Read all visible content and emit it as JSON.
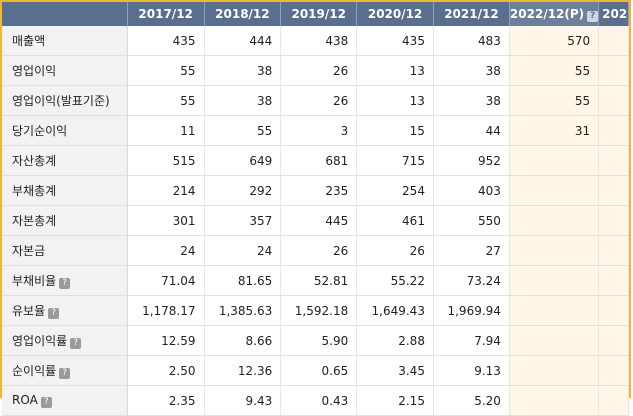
{
  "header": {
    "columns": [
      "2017/12",
      "2018/12",
      "2019/12",
      "2020/12",
      "2021/12",
      "2022/12(P)",
      "202"
    ],
    "help_icon": "?"
  },
  "rows": [
    {
      "label": "매출액",
      "values": [
        "435",
        "444",
        "438",
        "435",
        "483",
        "570"
      ],
      "help": false
    },
    {
      "label": "영업이익",
      "values": [
        "55",
        "38",
        "26",
        "13",
        "38",
        "55"
      ],
      "help": false
    },
    {
      "label": "영업이익(발표기준)",
      "values": [
        "55",
        "38",
        "26",
        "13",
        "38",
        "55"
      ],
      "help": false
    },
    {
      "label": "당기순이익",
      "values": [
        "11",
        "55",
        "3",
        "15",
        "44",
        "31"
      ],
      "help": false
    },
    {
      "label": "자산총계",
      "values": [
        "515",
        "649",
        "681",
        "715",
        "952",
        ""
      ],
      "help": false
    },
    {
      "label": "부채총계",
      "values": [
        "214",
        "292",
        "235",
        "254",
        "403",
        ""
      ],
      "help": false
    },
    {
      "label": "자본총계",
      "values": [
        "301",
        "357",
        "445",
        "461",
        "550",
        ""
      ],
      "help": false
    },
    {
      "label": "자본금",
      "values": [
        "24",
        "24",
        "26",
        "26",
        "27",
        ""
      ],
      "help": false
    },
    {
      "label": "부채비율",
      "values": [
        "71.04",
        "81.65",
        "52.81",
        "55.22",
        "73.24",
        ""
      ],
      "help": true
    },
    {
      "label": "유보율",
      "values": [
        "1,178.17",
        "1,385.63",
        "1,592.18",
        "1,649.43",
        "1,969.94",
        ""
      ],
      "help": true
    },
    {
      "label": "영업이익률",
      "values": [
        "12.59",
        "8.66",
        "5.90",
        "2.88",
        "7.94",
        ""
      ],
      "help": true
    },
    {
      "label": "순이익률",
      "values": [
        "2.50",
        "12.36",
        "0.65",
        "3.45",
        "9.13",
        ""
      ],
      "help": true
    },
    {
      "label": "ROA",
      "values": [
        "2.35",
        "9.43",
        "0.43",
        "2.15",
        "5.20",
        ""
      ],
      "help": true
    }
  ],
  "colors": {
    "header": "#5a6e90",
    "border_accent": "#f0b62d",
    "projection_bg": "#fff6e7"
  }
}
